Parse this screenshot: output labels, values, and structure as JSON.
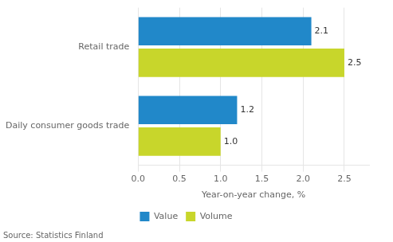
{
  "chart_data": {
    "type": "bar",
    "orientation": "horizontal",
    "categories": [
      "Retail trade",
      "Daily consumer goods trade"
    ],
    "series": [
      {
        "name": "Value",
        "color": "#2188c9",
        "values": [
          2.1,
          1.2
        ],
        "value_labels": [
          "2.1",
          "1.2"
        ]
      },
      {
        "name": "Volume",
        "color": "#c8d62b",
        "values": [
          2.5,
          1.0
        ],
        "value_labels": [
          "2.5",
          "1.0"
        ]
      }
    ],
    "xlabel": "Year-on-year change, %",
    "xlim": [
      0,
      2.8
    ],
    "xticks": [
      {
        "value": 0,
        "label": "0.0"
      },
      0.5,
      {
        "value": 1,
        "label": "1.0"
      },
      1.5,
      {
        "value": 2,
        "label": "2.0"
      },
      2.5
    ],
    "grid": "x",
    "legend": "bottom",
    "data_labels": true,
    "annotations": [
      "Source: Statistics Finland"
    ]
  }
}
